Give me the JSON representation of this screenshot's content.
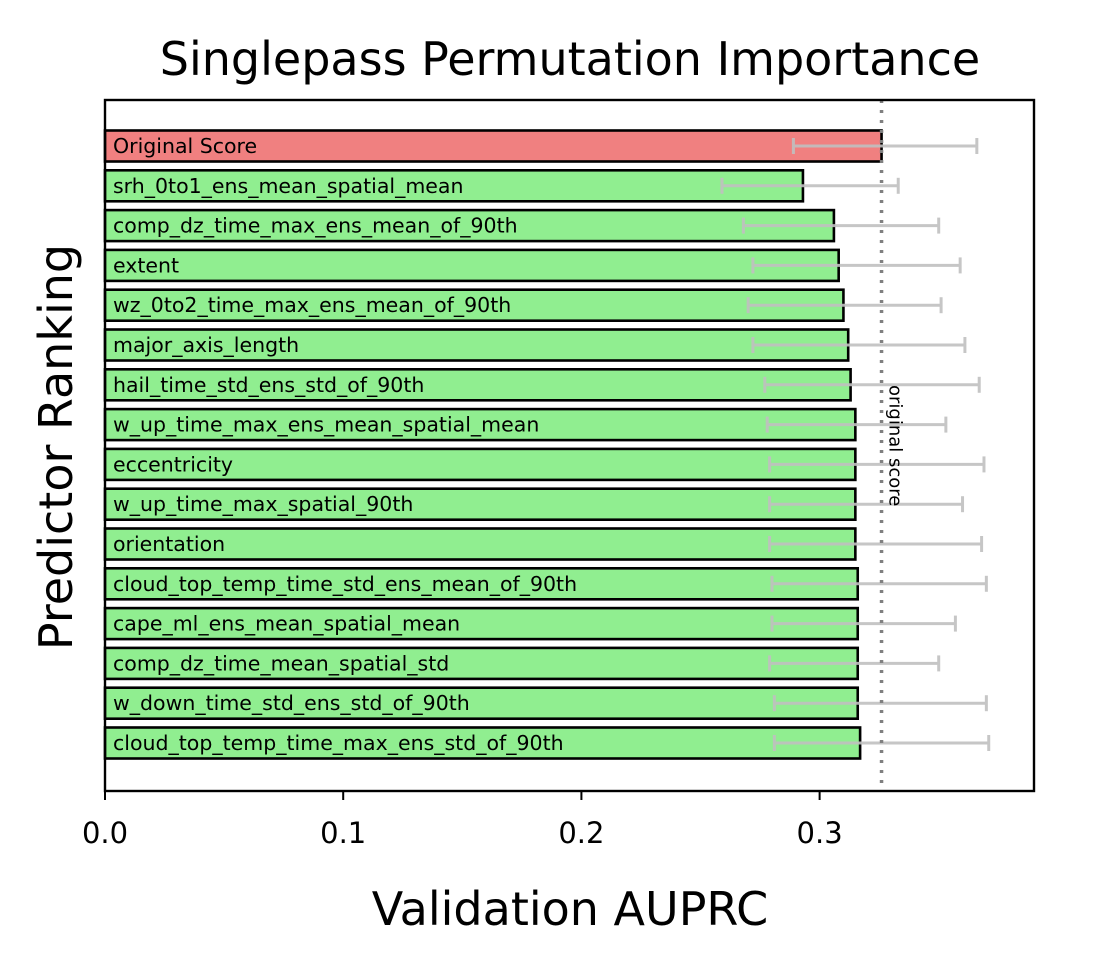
{
  "chart_data": {
    "type": "bar",
    "orientation": "horizontal",
    "title": "Singlepass Permutation Importance",
    "xlabel": "Validation AUPRC",
    "ylabel": "Predictor Ranking",
    "xlim": [
      0.0,
      0.39
    ],
    "xticks": [
      "0.0",
      "0.1",
      "0.2",
      "0.3"
    ],
    "grid": false,
    "reference_line": {
      "value": 0.326,
      "label": "original score",
      "style": "dotted"
    },
    "colors": {
      "original_bar": "#f08080",
      "predictor_bar": "#90ee90",
      "bar_edge": "#000000",
      "error_bar": "#c0c0c0",
      "reference_line": "#808080"
    },
    "categories": [
      "Original Score",
      "srh_0to1_ens_mean_spatial_mean",
      "comp_dz_time_max_ens_mean_of_90th",
      "extent",
      "wz_0to2_time_max_ens_mean_of_90th",
      "major_axis_length",
      "hail_time_std_ens_std_of_90th",
      "w_up_time_max_ens_mean_spatial_mean",
      "eccentricity",
      "w_up_time_max_spatial_90th",
      "orientation",
      "cloud_top_temp_time_std_ens_mean_of_90th",
      "cape_ml_ens_mean_spatial_mean",
      "comp_dz_time_mean_spatial_std",
      "w_down_time_std_ens_std_of_90th",
      "cloud_top_temp_time_max_ens_std_of_90th"
    ],
    "values": [
      0.326,
      0.293,
      0.306,
      0.308,
      0.31,
      0.312,
      0.313,
      0.315,
      0.315,
      0.315,
      0.315,
      0.316,
      0.316,
      0.316,
      0.316,
      0.317
    ],
    "error_low": [
      0.289,
      0.259,
      0.268,
      0.272,
      0.27,
      0.272,
      0.277,
      0.278,
      0.279,
      0.279,
      0.279,
      0.28,
      0.28,
      0.279,
      0.281,
      0.281
    ],
    "error_high": [
      0.366,
      0.333,
      0.35,
      0.359,
      0.351,
      0.361,
      0.367,
      0.353,
      0.369,
      0.36,
      0.368,
      0.37,
      0.357,
      0.35,
      0.37,
      0.371
    ]
  }
}
